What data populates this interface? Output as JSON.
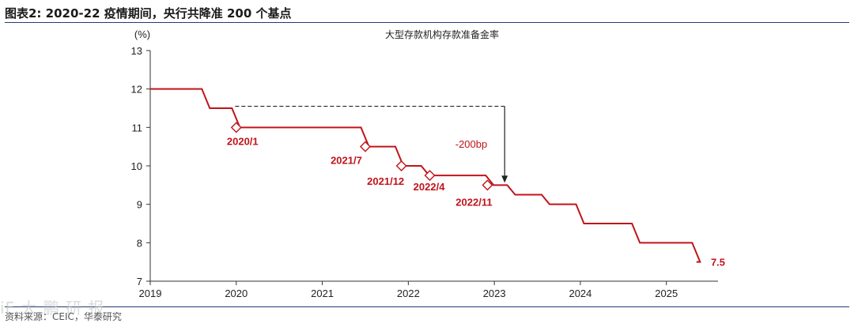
{
  "header": {
    "figure_label": "图表2:",
    "title": "2020-22 疫情期间，央行共降准 200 个基点"
  },
  "source": "资料来源：CEIC，华泰研究",
  "watermark": "iF  大 鹏 研 报",
  "chart_data": {
    "type": "line",
    "title": "大型存款机构存款准备金率",
    "ylabel": "(%)",
    "xlabel": "",
    "ylim": [
      7,
      13
    ],
    "yticks": [
      7,
      8,
      9,
      10,
      11,
      12,
      13
    ],
    "xlim": [
      2019,
      2025.6
    ],
    "xticks": [
      "2019",
      "2020",
      "2021",
      "2022",
      "2023",
      "2024",
      "2025"
    ],
    "grid": false,
    "series": [
      {
        "name": "",
        "color": "#c0141b",
        "step_points": [
          [
            2019.0,
            12.0
          ],
          [
            2019.6,
            11.5
          ],
          [
            2019.95,
            11.0
          ],
          [
            2021.45,
            10.5
          ],
          [
            2021.85,
            10.0
          ],
          [
            2022.15,
            9.75
          ],
          [
            2022.9,
            9.5
          ],
          [
            2023.15,
            9.25
          ],
          [
            2023.55,
            9.0
          ],
          [
            2023.95,
            8.5
          ],
          [
            2024.6,
            8.0
          ],
          [
            2025.3,
            7.5
          ],
          [
            2025.35,
            7.5
          ]
        ]
      }
    ],
    "markers": [
      {
        "label": "2020/1",
        "x": 2020.0,
        "y": 11.0
      },
      {
        "label": "2021/7",
        "x": 2021.5,
        "y": 10.5
      },
      {
        "label": "2021/12",
        "x": 2021.92,
        "y": 10.0
      },
      {
        "label": "2022/4",
        "x": 2022.25,
        "y": 9.75
      },
      {
        "label": "2022/11",
        "x": 2022.92,
        "y": 9.5
      }
    ],
    "annotations": {
      "reduction_label": "-200bp",
      "last_value_label": "7.5",
      "dashed_from": {
        "x": 2019.95,
        "y": 11.55
      },
      "dashed_to": {
        "x": 2023.12,
        "y": 11.55
      },
      "arrow_to_y": 9.5
    }
  }
}
